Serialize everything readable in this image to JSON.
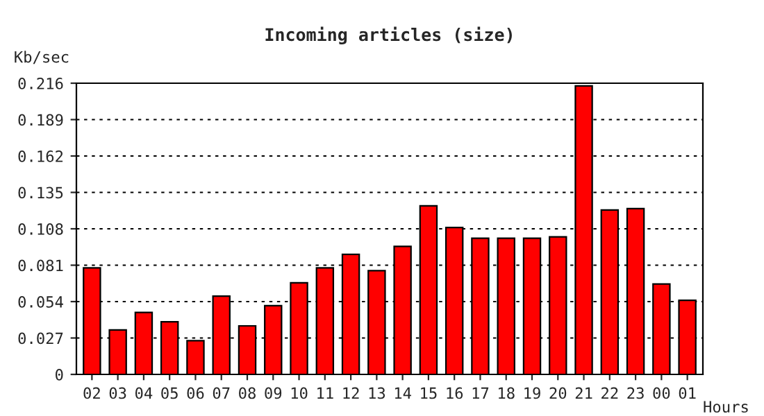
{
  "chart_data": {
    "type": "bar",
    "title": "Incoming articles (size)",
    "ylabel": "Kb/sec",
    "xlabel": "Hours",
    "categories": [
      "02",
      "03",
      "04",
      "05",
      "06",
      "07",
      "08",
      "09",
      "10",
      "11",
      "12",
      "13",
      "14",
      "15",
      "16",
      "17",
      "18",
      "19",
      "20",
      "21",
      "22",
      "23",
      "00",
      "01"
    ],
    "values": [
      0.079,
      0.033,
      0.046,
      0.039,
      0.025,
      0.058,
      0.036,
      0.051,
      0.068,
      0.079,
      0.089,
      0.077,
      0.095,
      0.125,
      0.109,
      0.101,
      0.101,
      0.101,
      0.102,
      0.214,
      0.122,
      0.123,
      0.067,
      0.055
    ],
    "color": "#ff0000",
    "ylim": [
      0,
      0.216
    ],
    "yticks": [
      {
        "value": 0,
        "label": "0"
      },
      0.027,
      0.054,
      0.081,
      0.108,
      0.135,
      0.162,
      0.189,
      0.216
    ],
    "grid": "y"
  }
}
